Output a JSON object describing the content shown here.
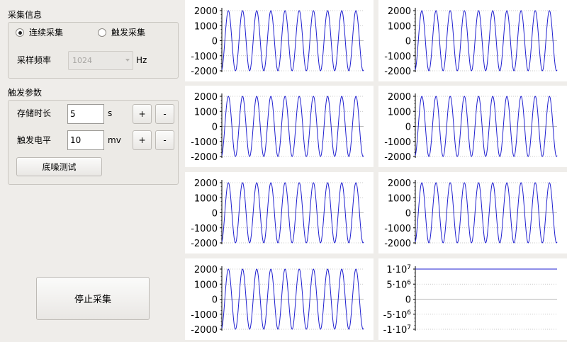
{
  "acquisition": {
    "title": "采集信息",
    "mode_continuous": "连续采集",
    "mode_trigger": "触发采集",
    "mode_selected": "continuous",
    "rate_label": "采样频率",
    "rate_value": "1024",
    "rate_unit": "Hz"
  },
  "trigger": {
    "title": "触发参数",
    "duration_label": "存储时长",
    "duration_value": "5",
    "duration_unit": "s",
    "level_label": "触发电平",
    "level_value": "10",
    "level_unit": "mv",
    "plus": "+",
    "minus": "-",
    "noise_test": "底噪测试"
  },
  "stop_button": "停止采集",
  "colors": {
    "trace": "#1f1fd0",
    "grid": "#b8b8b8",
    "background": "#efedea"
  },
  "chart_data": [
    {
      "type": "line",
      "ylim": [
        -2000,
        2000
      ],
      "ticks": [
        "2000",
        "1000",
        "0",
        "-1000",
        "-2000"
      ],
      "amplitude": 2000,
      "cycles": 10,
      "grid": true
    },
    {
      "type": "line",
      "ylim": [
        -2000,
        2000
      ],
      "ticks": [
        "2000",
        "1000",
        "0",
        "-1000",
        "-2000"
      ],
      "amplitude": 2000,
      "cycles": 10,
      "grid": true
    },
    {
      "type": "line",
      "ylim": [
        -2000,
        2000
      ],
      "ticks": [
        "2000",
        "1000",
        "0",
        "-1000",
        "-2000"
      ],
      "amplitude": 2000,
      "cycles": 10,
      "grid": true
    },
    {
      "type": "line",
      "ylim": [
        -2000,
        2000
      ],
      "ticks": [
        "2000",
        "1000",
        "0",
        "-1000",
        "-2000"
      ],
      "amplitude": 2000,
      "cycles": 10,
      "grid": true
    },
    {
      "type": "line",
      "ylim": [
        -2000,
        2000
      ],
      "ticks": [
        "2000",
        "1000",
        "0",
        "-1000",
        "-2000"
      ],
      "amplitude": 2000,
      "cycles": 10,
      "grid": true
    },
    {
      "type": "line",
      "ylim": [
        -2000,
        2000
      ],
      "ticks": [
        "2000",
        "1000",
        "0",
        "-1000",
        "-2000"
      ],
      "amplitude": 2000,
      "cycles": 10,
      "grid": true
    },
    {
      "type": "line",
      "ylim": [
        -2000,
        2000
      ],
      "ticks": [
        "2000",
        "1000",
        "0",
        "-1000",
        "-2000"
      ],
      "amplitude": 2000,
      "cycles": 10,
      "grid": true
    },
    {
      "type": "line",
      "ylim": [
        -10000000,
        10000000
      ],
      "ticks": [
        {
          "base": "1·10",
          "exp": "7"
        },
        {
          "base": "5·10",
          "exp": "6"
        },
        {
          "base": "0",
          "exp": ""
        },
        {
          "base": "-5·10",
          "exp": "6"
        },
        {
          "base": "-1·10",
          "exp": "7"
        }
      ],
      "constant": 10000000,
      "grid": true
    }
  ]
}
